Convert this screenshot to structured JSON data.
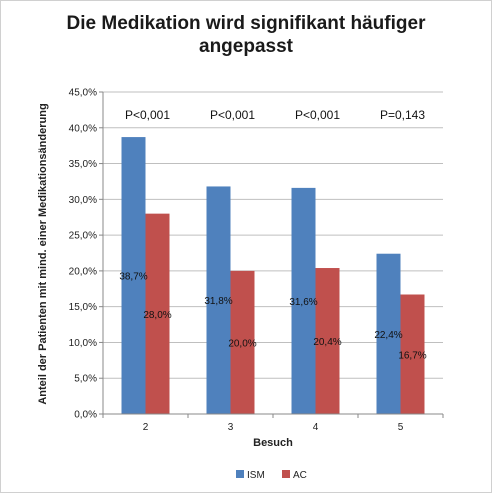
{
  "chart_data": {
    "type": "bar",
    "title_lines": [
      "Die Medikation wird signifikant häufiger",
      "angepasst"
    ],
    "xlabel": "Besuch",
    "ylabel": "Anteil der Patienten mit mind. einer Medikationsänderung",
    "categories": [
      "2",
      "3",
      "4",
      "5"
    ],
    "ylim": [
      0,
      45
    ],
    "y_ticks": [
      "0,0%",
      "5,0%",
      "10,0%",
      "15,0%",
      "20,0%",
      "25,0%",
      "30,0%",
      "35,0%",
      "40,0%",
      "45,0%"
    ],
    "y_tick_values": [
      0,
      5,
      10,
      15,
      20,
      25,
      30,
      35,
      40,
      45
    ],
    "grid": "horizontal",
    "legend_position": "bottom",
    "series": [
      {
        "name": "ISM",
        "color": "#4F81BD",
        "values": [
          38.7,
          31.8,
          31.6,
          22.4
        ],
        "labels": [
          "38,7%",
          "31,8%",
          "31,6%",
          "22,4%"
        ]
      },
      {
        "name": "AC",
        "color": "#C0504D",
        "values": [
          28.0,
          20.0,
          20.4,
          16.7
        ],
        "labels": [
          "28,0%",
          "20,0%",
          "20,4%",
          "16,7%"
        ]
      }
    ],
    "annotations": [
      "P<0,001",
      "P<0,001",
      "P<0,001",
      "P=0,143"
    ]
  }
}
